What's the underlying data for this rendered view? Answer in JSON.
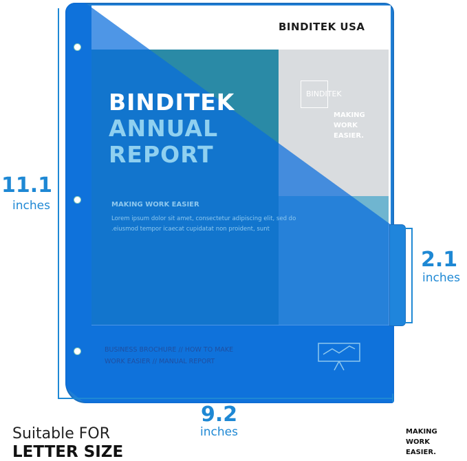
{
  "brand_header": "BINDITEK USA",
  "cover": {
    "title": [
      "BINDITEK",
      "ANNUAL",
      "REPORT"
    ],
    "subtitle": "MAKING WORK EASIER",
    "body": "Lorem ipsum dolor sit amet, consectetur adipiscing elit, sed do .eiusmod tempor icaecat cupidatat non proident, sunt",
    "logo": "BINDITEK",
    "slogan": [
      "MAKING",
      "WORK",
      "EASIER."
    ],
    "footer": [
      "BUSINESS BROCHURE // HOW TO MAKE",
      "WORK EASIER // MANUAL REPORT"
    ],
    "icon": "presentation-board-icon"
  },
  "dimensions": {
    "height": {
      "value": "11.1",
      "unit": "inches"
    },
    "width": {
      "value": "9.2",
      "unit": "inches"
    },
    "tab": {
      "value": "2.1",
      "unit": "inches"
    }
  },
  "caption": {
    "line1": "Suitable FOR",
    "line2": "LETTER SIZE"
  },
  "tagline": [
    "MAKING",
    "WORK",
    "EASIER."
  ],
  "colors": {
    "accent": "#1e88d4",
    "sleeve": "#1f7fd6"
  }
}
